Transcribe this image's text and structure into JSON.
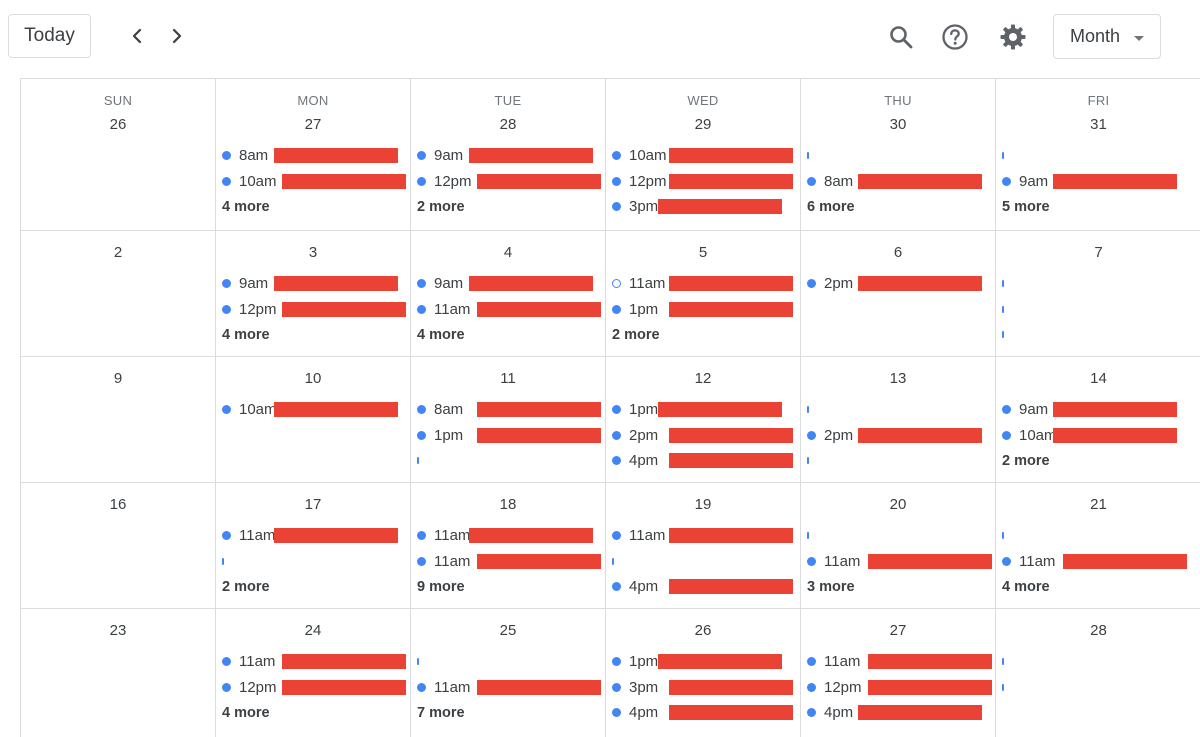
{
  "toolbar": {
    "today_label": "Today",
    "prev_icon": "chevron-left-icon",
    "next_icon": "chevron-right-icon",
    "search_icon": "search-icon",
    "help_icon": "help-icon",
    "settings_icon": "gear-icon",
    "view_label": "Month"
  },
  "colors": {
    "event_dot": "#4285f4",
    "redaction": "#ea4335",
    "grid_line": "#dadce0"
  },
  "days_of_week": [
    "SUN",
    "MON",
    "TUE",
    "WED",
    "THU",
    "FRI"
  ],
  "weeks": [
    [
      {
        "date": "26",
        "events": [],
        "more": ""
      },
      {
        "date": "27",
        "events": [
          {
            "time": "8am"
          },
          {
            "time": "10am"
          }
        ],
        "more": "4 more"
      },
      {
        "date": "28",
        "events": [
          {
            "time": "9am"
          },
          {
            "time": "12pm"
          }
        ],
        "more": "2 more"
      },
      {
        "date": "29",
        "events": [
          {
            "time": "10am"
          },
          {
            "time": "12pm"
          },
          {
            "time": "3pm"
          }
        ],
        "more": ""
      },
      {
        "date": "30",
        "events": [
          {
            "time": ""
          },
          {
            "time": "8am"
          }
        ],
        "more": "6 more"
      },
      {
        "date": "31",
        "events": [
          {
            "time": ""
          },
          {
            "time": "9am"
          }
        ],
        "more": "5 more"
      }
    ],
    [
      {
        "date": "2",
        "events": [],
        "more": ""
      },
      {
        "date": "3",
        "events": [
          {
            "time": "9am"
          },
          {
            "time": "12pm"
          }
        ],
        "more": "4 more"
      },
      {
        "date": "4",
        "events": [
          {
            "time": "9am"
          },
          {
            "time": "11am"
          }
        ],
        "more": "4 more"
      },
      {
        "date": "5",
        "events": [
          {
            "time": "11am",
            "hollow": true
          },
          {
            "time": "1pm"
          }
        ],
        "more": "2 more"
      },
      {
        "date": "6",
        "events": [
          {
            "time": "2pm"
          }
        ],
        "more": ""
      },
      {
        "date": "7",
        "events": [
          {
            "time": ""
          },
          {
            "time": ""
          },
          {
            "time": ""
          }
        ],
        "more": ""
      }
    ],
    [
      {
        "date": "9",
        "events": [],
        "more": ""
      },
      {
        "date": "10",
        "events": [
          {
            "time": "10am"
          }
        ],
        "more": ""
      },
      {
        "date": "11",
        "events": [
          {
            "time": "8am"
          },
          {
            "time": "1pm"
          },
          {
            "time": ""
          }
        ],
        "more": ""
      },
      {
        "date": "12",
        "events": [
          {
            "time": "1pm"
          },
          {
            "time": "2pm"
          },
          {
            "time": "4pm"
          }
        ],
        "more": ""
      },
      {
        "date": "13",
        "events": [
          {
            "time": ""
          },
          {
            "time": "2pm"
          },
          {
            "time": ""
          }
        ],
        "more": ""
      },
      {
        "date": "14",
        "events": [
          {
            "time": "9am"
          },
          {
            "time": "10am"
          }
        ],
        "more": "2 more"
      }
    ],
    [
      {
        "date": "16",
        "events": [],
        "more": ""
      },
      {
        "date": "17",
        "events": [
          {
            "time": "11am"
          },
          {
            "time": ""
          }
        ],
        "more": "2 more"
      },
      {
        "date": "18",
        "events": [
          {
            "time": "11am"
          },
          {
            "time": "11am"
          }
        ],
        "more": "9 more"
      },
      {
        "date": "19",
        "events": [
          {
            "time": "11am"
          },
          {
            "time": ""
          },
          {
            "time": "4pm"
          }
        ],
        "more": ""
      },
      {
        "date": "20",
        "events": [
          {
            "time": ""
          },
          {
            "time": "11am"
          }
        ],
        "more": "3 more"
      },
      {
        "date": "21",
        "events": [
          {
            "time": ""
          },
          {
            "time": "11am"
          }
        ],
        "more": "4 more"
      }
    ],
    [
      {
        "date": "23",
        "events": [],
        "more": ""
      },
      {
        "date": "24",
        "events": [
          {
            "time": "11am"
          },
          {
            "time": "12pm"
          }
        ],
        "more": "4 more"
      },
      {
        "date": "25",
        "events": [
          {
            "time": ""
          },
          {
            "time": "11am"
          }
        ],
        "more": "7 more"
      },
      {
        "date": "26",
        "events": [
          {
            "time": "1pm"
          },
          {
            "time": "3pm"
          },
          {
            "time": "4pm"
          }
        ],
        "more": ""
      },
      {
        "date": "27",
        "events": [
          {
            "time": "11am"
          },
          {
            "time": "12pm"
          },
          {
            "time": "4pm"
          }
        ],
        "more": ""
      },
      {
        "date": "28",
        "events": [
          {
            "time": ""
          },
          {
            "time": ""
          }
        ],
        "more": ""
      }
    ]
  ]
}
